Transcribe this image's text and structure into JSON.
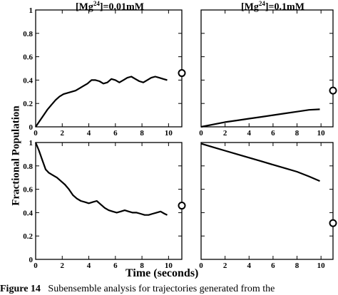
{
  "figure": {
    "ylabel": "Fractional Population",
    "xlabel": "Time (seconds)",
    "caption_label": "Figure 14",
    "caption_text": "Subensemble analysis for trajectories generated from the"
  },
  "chart_data": [
    {
      "type": "line",
      "title": "[Mg24]=0.01mM",
      "title_base": "[Mg",
      "title_sup": "24",
      "title_rest": "]=0.01mM",
      "xlim": [
        0,
        11
      ],
      "ylim": [
        0,
        1
      ],
      "xticks": [
        "0",
        "2",
        "4",
        "6",
        "8",
        "10"
      ],
      "yticks": [
        "0",
        "0.2",
        "0.4",
        "0.6",
        "0.8",
        "1"
      ],
      "series": [
        {
          "x": [
            0,
            0.3,
            0.6,
            0.9,
            1.2,
            1.5,
            1.8,
            2.1,
            2.4,
            2.7,
            3.0,
            3.3,
            3.6,
            3.9,
            4.2,
            4.5,
            4.8,
            5.1,
            5.4,
            5.7,
            6.0,
            6.3,
            6.6,
            6.9,
            7.2,
            7.5,
            7.8,
            8.1,
            8.4,
            8.7,
            9.0,
            9.3,
            9.6,
            9.9
          ],
          "y": [
            0.0,
            0.05,
            0.1,
            0.15,
            0.19,
            0.23,
            0.26,
            0.28,
            0.29,
            0.3,
            0.31,
            0.33,
            0.35,
            0.37,
            0.4,
            0.4,
            0.39,
            0.37,
            0.38,
            0.41,
            0.4,
            0.38,
            0.4,
            0.42,
            0.43,
            0.41,
            0.39,
            0.38,
            0.4,
            0.42,
            0.43,
            0.42,
            0.41,
            0.4
          ]
        }
      ],
      "marker": {
        "x": 11,
        "y": 0.46
      }
    },
    {
      "type": "line",
      "title": "[Mg24]=0.1mM",
      "title_base": "[Mg",
      "title_sup": "24",
      "title_rest": "]=0.1mM",
      "xlim": [
        0,
        11
      ],
      "ylim": [
        0,
        1
      ],
      "xticks": [
        "0",
        "2",
        "4",
        "6",
        "8",
        "10"
      ],
      "yticks": [],
      "series": [
        {
          "x": [
            0,
            1,
            2,
            3,
            4,
            5,
            6,
            7,
            8,
            9,
            9.9
          ],
          "y": [
            0.0,
            0.02,
            0.04,
            0.055,
            0.07,
            0.085,
            0.1,
            0.115,
            0.13,
            0.145,
            0.15
          ]
        }
      ],
      "marker": {
        "x": 11,
        "y": 0.31
      }
    },
    {
      "type": "line",
      "title": "",
      "xlim": [
        0,
        11
      ],
      "ylim": [
        0,
        1
      ],
      "xticks": [
        "0",
        "2",
        "4",
        "6",
        "8",
        "10"
      ],
      "yticks": [
        "0",
        "0.2",
        "0.4",
        "0.6",
        "0.8",
        "1"
      ],
      "series": [
        {
          "x": [
            0,
            0.25,
            0.5,
            0.75,
            1.0,
            1.3,
            1.6,
            1.9,
            2.2,
            2.5,
            2.8,
            3.1,
            3.4,
            3.7,
            4.0,
            4.3,
            4.6,
            4.9,
            5.2,
            5.5,
            5.8,
            6.1,
            6.4,
            6.7,
            7.0,
            7.3,
            7.6,
            7.9,
            8.2,
            8.5,
            8.8,
            9.1,
            9.4,
            9.7,
            9.9
          ],
          "y": [
            1.0,
            0.93,
            0.85,
            0.77,
            0.74,
            0.72,
            0.7,
            0.67,
            0.64,
            0.6,
            0.55,
            0.52,
            0.5,
            0.49,
            0.48,
            0.49,
            0.5,
            0.47,
            0.44,
            0.42,
            0.41,
            0.4,
            0.41,
            0.42,
            0.41,
            0.4,
            0.4,
            0.39,
            0.38,
            0.38,
            0.39,
            0.4,
            0.41,
            0.39,
            0.38
          ]
        }
      ],
      "marker": {
        "x": 11,
        "y": 0.46
      }
    },
    {
      "type": "line",
      "title": "",
      "xlim": [
        0,
        11
      ],
      "ylim": [
        0,
        1
      ],
      "xticks": [
        "0",
        "2",
        "4",
        "6",
        "8",
        "10"
      ],
      "yticks": [],
      "series": [
        {
          "x": [
            0,
            1,
            2,
            3,
            4,
            5,
            6,
            7,
            8,
            9,
            9.9
          ],
          "y": [
            0.99,
            0.96,
            0.93,
            0.9,
            0.87,
            0.84,
            0.81,
            0.78,
            0.75,
            0.71,
            0.67
          ]
        }
      ],
      "marker": {
        "x": 11,
        "y": 0.31
      }
    }
  ]
}
